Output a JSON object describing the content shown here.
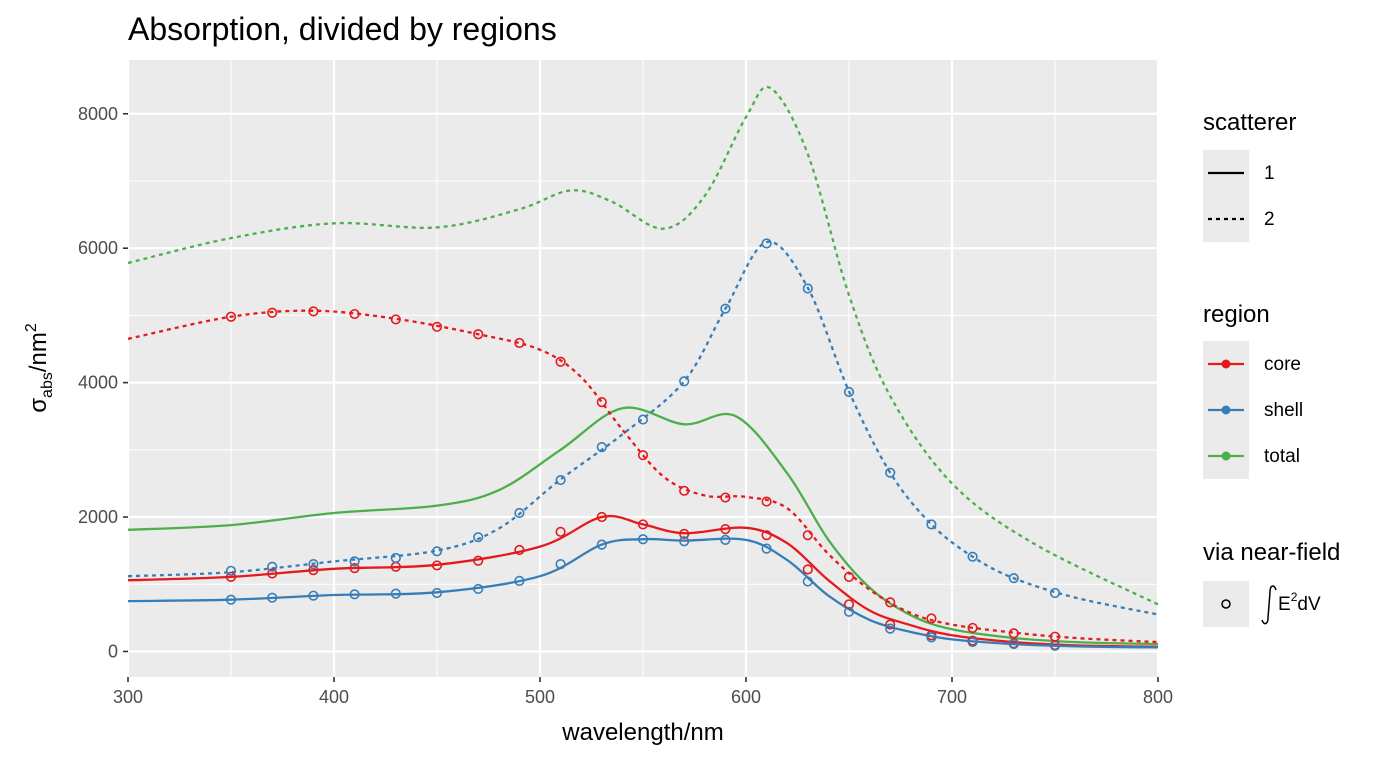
{
  "chart_data": {
    "type": "line",
    "title": "Absorption, divided by regions",
    "xlabel": "wavelength/nm",
    "ylabel": {
      "symbol": "σ",
      "subscript": "abs",
      "unit": "/nm",
      "superscript": "2"
    },
    "xlim": [
      300,
      800
    ],
    "ylim": [
      -380,
      8800
    ],
    "xticks": [
      300,
      400,
      500,
      600,
      700,
      800
    ],
    "yticks": [
      0,
      2000,
      4000,
      6000,
      8000
    ],
    "grid": true,
    "colors": {
      "core": "#E41A1C",
      "shell": "#377EB8",
      "total": "#4DAF4A",
      "panel": "#EBEBEB",
      "grid": "#FFFFFF"
    },
    "legend": {
      "placement": "right",
      "scatterer": {
        "title": "scatterer",
        "entries": [
          "1",
          "2"
        ],
        "linetypes": [
          "solid",
          "dashed"
        ]
      },
      "region": {
        "title": "region",
        "entries": [
          "core",
          "shell",
          "total"
        ]
      },
      "nearfield": {
        "title": "via near-field",
        "label_prefix": "E",
        "label_superscript": "2",
        "label_suffix": "dV"
      }
    },
    "series": [
      {
        "region": "core",
        "scatterer": "1",
        "x": [
          300,
          350,
          400,
          450,
          500,
          530,
          550,
          570,
          600,
          620,
          640,
          660,
          680,
          700,
          730,
          760,
          800
        ],
        "y": [
          1060,
          1110,
          1230,
          1290,
          1560,
          2000,
          1890,
          1760,
          1840,
          1610,
          1060,
          610,
          390,
          240,
          140,
          90,
          70
        ]
      },
      {
        "region": "shell",
        "scatterer": "1",
        "x": [
          300,
          350,
          400,
          450,
          500,
          530,
          550,
          570,
          600,
          620,
          640,
          660,
          680,
          700,
          730,
          760,
          800
        ],
        "y": [
          750,
          770,
          840,
          880,
          1120,
          1590,
          1670,
          1650,
          1660,
          1360,
          830,
          470,
          290,
          180,
          110,
          75,
          60
        ]
      },
      {
        "region": "total",
        "scatterer": "1",
        "x": [
          300,
          350,
          400,
          450,
          480,
          510,
          540,
          570,
          595,
          620,
          640,
          660,
          680,
          700,
          730,
          760,
          800
        ],
        "y": [
          1810,
          1880,
          2060,
          2170,
          2400,
          3000,
          3620,
          3380,
          3500,
          2650,
          1660,
          950,
          540,
          330,
          200,
          140,
          110
        ]
      },
      {
        "region": "core",
        "scatterer": "2",
        "x": [
          300,
          350,
          390,
          430,
          470,
          500,
          520,
          540,
          560,
          580,
          600,
          620,
          640,
          660,
          680,
          700,
          730,
          760,
          800
        ],
        "y": [
          4650,
          4980,
          5070,
          4950,
          4720,
          4490,
          4080,
          3300,
          2600,
          2320,
          2300,
          2130,
          1450,
          920,
          570,
          400,
          280,
          200,
          140
        ]
      },
      {
        "region": "shell",
        "scatterer": "2",
        "x": [
          300,
          350,
          400,
          450,
          480,
          510,
          540,
          570,
          590,
          610,
          630,
          650,
          670,
          690,
          710,
          730,
          760,
          800
        ],
        "y": [
          1120,
          1180,
          1340,
          1500,
          1830,
          2560,
          3230,
          4020,
          5100,
          6090,
          5410,
          3870,
          2660,
          1890,
          1410,
          1090,
          800,
          550
        ]
      },
      {
        "region": "total",
        "scatterer": "2",
        "x": [
          300,
          350,
          400,
          450,
          490,
          515,
          535,
          560,
          580,
          600,
          612,
          630,
          650,
          670,
          700,
          740,
          800
        ],
        "y": [
          5780,
          6150,
          6370,
          6310,
          6580,
          6860,
          6690,
          6290,
          6780,
          7950,
          8380,
          7400,
          5300,
          3800,
          2500,
          1600,
          700
        ]
      }
    ],
    "nearfield_points": [
      {
        "region": "core",
        "x": [
          350,
          370,
          390,
          410,
          430,
          450,
          470,
          490,
          510,
          530,
          550,
          570,
          590,
          610,
          630,
          650,
          670,
          690,
          710,
          730,
          750
        ],
        "y": [
          1110,
          1160,
          1210,
          1240,
          1260,
          1280,
          1350,
          1510,
          1780,
          2000,
          1890,
          1750,
          1820,
          1730,
          1220,
          700,
          400,
          240,
          160,
          120,
          95
        ]
      },
      {
        "region": "shell",
        "x": [
          350,
          370,
          390,
          410,
          430,
          450,
          470,
          490,
          510,
          530,
          550,
          570,
          590,
          610,
          630,
          650,
          670,
          690,
          710,
          730,
          750
        ],
        "y": [
          770,
          800,
          830,
          850,
          860,
          870,
          930,
          1050,
          1300,
          1590,
          1670,
          1640,
          1660,
          1530,
          1040,
          590,
          340,
          210,
          140,
          110,
          85
        ]
      },
      {
        "region": "core",
        "x": [
          350,
          370,
          390,
          410,
          430,
          450,
          470,
          490,
          510,
          530,
          550,
          570,
          590,
          610,
          630,
          650,
          670,
          690,
          710,
          730,
          750
        ],
        "y": [
          4980,
          5040,
          5060,
          5020,
          4940,
          4830,
          4720,
          4590,
          4310,
          3710,
          2920,
          2390,
          2290,
          2230,
          1730,
          1110,
          730,
          490,
          350,
          270,
          220
        ]
      },
      {
        "region": "shell",
        "x": [
          350,
          370,
          390,
          410,
          430,
          450,
          470,
          490,
          510,
          530,
          550,
          570,
          590,
          610,
          630,
          650,
          670,
          690,
          710,
          730,
          750
        ],
        "y": [
          1200,
          1260,
          1300,
          1340,
          1390,
          1490,
          1700,
          2060,
          2550,
          3040,
          3450,
          4020,
          5100,
          6070,
          5400,
          3860,
          2660,
          1890,
          1410,
          1090,
          870
        ]
      }
    ]
  }
}
